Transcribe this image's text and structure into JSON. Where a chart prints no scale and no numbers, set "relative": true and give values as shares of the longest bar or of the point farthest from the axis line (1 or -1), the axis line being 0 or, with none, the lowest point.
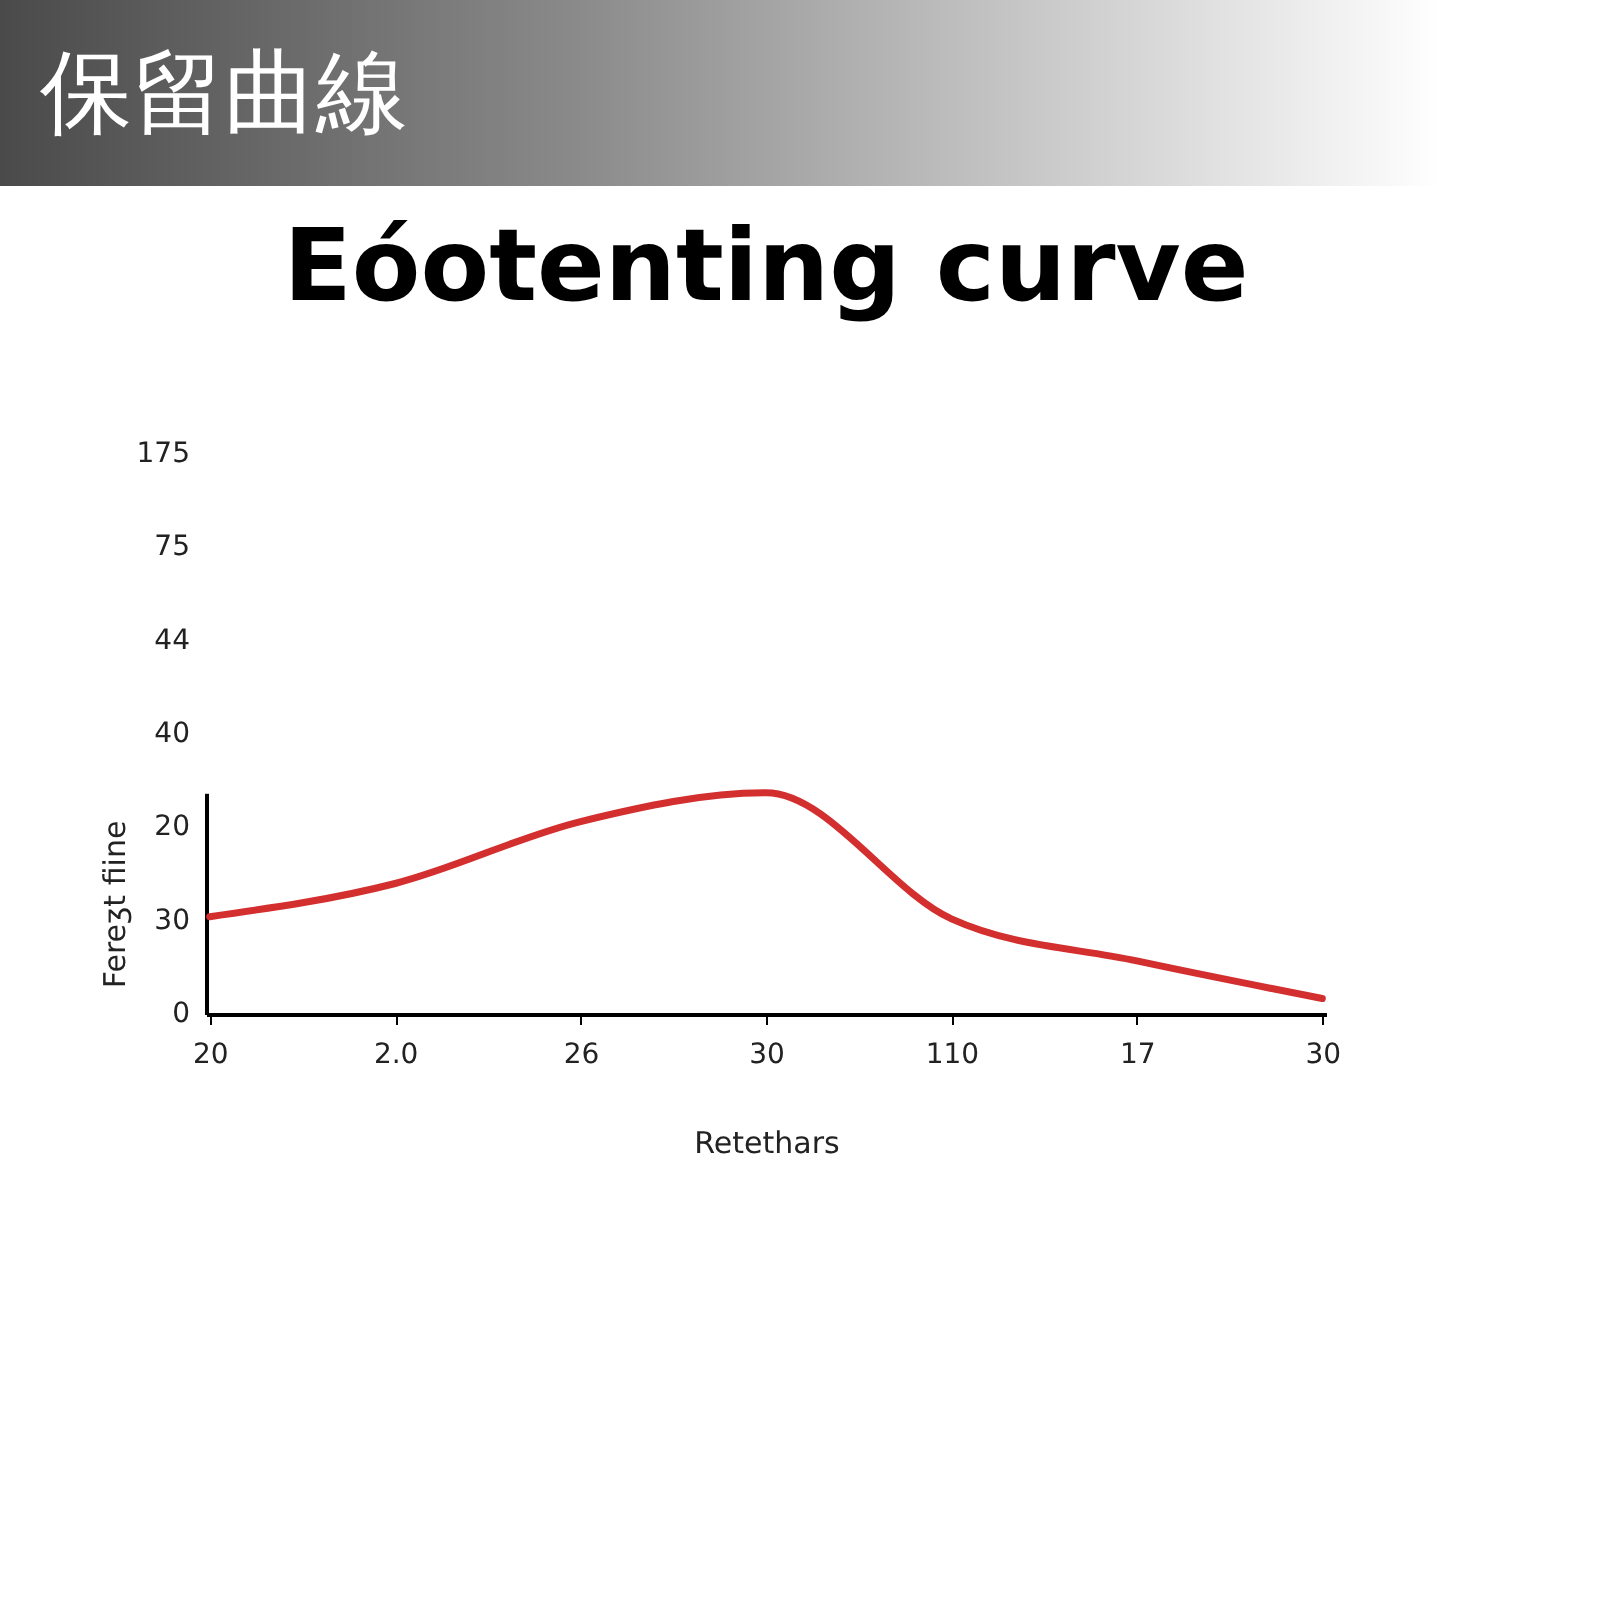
{
  "chart_data": {
    "type": "line",
    "title": "保留曲線",
    "subtitle": "Eóotenting curve",
    "xlabel": "Retethars",
    "ylabel": "Fereʒt fiine",
    "categories": [
      "20",
      "2.0",
      "26",
      "30",
      "110",
      "17",
      "30"
    ],
    "series": [
      {
        "color": "#d32f2f",
        "values": [
          0.44,
          0.59,
          0.87,
          1,
          0.43,
          0.24,
          0.07
        ]
      }
    ],
    "relative": true,
    "annotations": [
      "0",
      "30",
      "20",
      "40",
      "44",
      "75",
      "175"
    ],
    "grid": false,
    "marker": "none",
    "line_style": "solid"
  }
}
